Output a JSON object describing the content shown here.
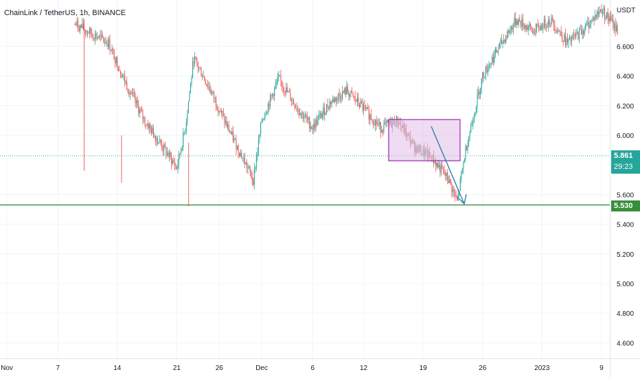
{
  "header": {
    "symbol": "ChainLink / TetherUS",
    "interval": "1h",
    "exchange": "BINANCE",
    "separator": ", "
  },
  "price_axis": {
    "unit": "USDT",
    "ticks": [
      "6.600",
      "6.400",
      "6.200",
      "6.000",
      "5.600",
      "5.400",
      "5.200",
      "5.000",
      "4.800",
      "4.600"
    ]
  },
  "time_axis": {
    "ticks": [
      "Nov",
      "7",
      "14",
      "21",
      "26",
      "Dec",
      "6",
      "12",
      "19",
      "26",
      "2023",
      "9"
    ]
  },
  "last_price": {
    "value": "5.861",
    "countdown": "29:23",
    "color": "#26a69a"
  },
  "support": {
    "value": "5.530",
    "color": "#388e3c"
  },
  "colors": {
    "up": "#26a69a",
    "down": "#ef5350",
    "grid": "#f0f3fa",
    "box_fill": "#e1bee7",
    "box_stroke": "#9c27b0",
    "arrow": "#2e7fa0"
  },
  "chart_data": {
    "type": "candlestick",
    "title": "ChainLink / TetherUS, 1h, BINANCE",
    "ylabel": "USDT",
    "ylim": [
      4.5,
      6.82
    ],
    "x_ticks": [
      "Nov",
      "7",
      "14",
      "21",
      "26",
      "Dec",
      "6",
      "12",
      "19",
      "26",
      "2023",
      "9"
    ],
    "y_ticks": [
      6.6,
      6.4,
      6.2,
      6.0,
      5.6,
      5.4,
      5.2,
      5.0,
      4.8,
      4.6
    ],
    "price_path": [
      [
        8,
        6.75
      ],
      [
        12,
        6.62
      ],
      [
        14,
        6.35
      ],
      [
        16,
        6.12
      ],
      [
        18,
        5.95
      ],
      [
        20,
        5.78
      ],
      [
        21,
        6.05
      ],
      [
        22,
        6.52
      ],
      [
        24,
        6.3
      ],
      [
        26,
        6.05
      ],
      [
        28,
        5.82
      ],
      [
        29,
        5.7
      ],
      [
        30,
        6.1
      ],
      [
        32,
        6.38
      ],
      [
        34,
        6.2
      ],
      [
        36,
        6.05
      ],
      [
        38,
        6.22
      ],
      [
        40,
        6.3
      ],
      [
        42,
        6.18
      ],
      [
        44,
        6.05
      ],
      [
        46,
        6.1
      ],
      [
        48,
        5.92
      ],
      [
        50,
        5.85
      ],
      [
        52,
        5.7
      ],
      [
        53,
        5.55
      ],
      [
        54,
        5.9
      ],
      [
        56,
        6.4
      ],
      [
        58,
        6.6
      ],
      [
        60,
        6.78
      ],
      [
        62,
        6.7
      ],
      [
        64,
        6.78
      ],
      [
        66,
        6.62
      ],
      [
        68,
        6.72
      ],
      [
        70,
        6.85
      ],
      [
        72,
        6.7
      ],
      [
        100,
        6.8
      ],
      [
        103,
        6.74
      ],
      [
        105,
        6.7
      ],
      [
        107,
        6.55
      ],
      [
        109,
        6.7
      ],
      [
        111,
        6.68
      ],
      [
        113,
        6.8
      ],
      [
        115,
        6.74
      ],
      [
        116,
        6.6
      ],
      [
        118,
        6.48
      ],
      [
        119,
        6.25
      ],
      [
        120,
        6.15
      ],
      [
        121,
        5.98
      ],
      [
        122,
        5.8
      ],
      [
        123,
        5.98
      ],
      [
        125,
        6.02
      ],
      [
        127,
        5.96
      ],
      [
        129,
        6.03
      ],
      [
        131,
        5.92
      ],
      [
        133,
        6.04
      ],
      [
        134,
        5.88
      ]
    ],
    "last_price": 5.861,
    "support_level": 5.53,
    "annotations": [
      {
        "type": "rectangle",
        "x": [
          120,
          134
        ],
        "y": [
          5.77,
          6.05
        ]
      },
      {
        "type": "arrow",
        "from": [
          134,
          6.05
        ],
        "to": [
          142,
          5.53
        ]
      }
    ]
  }
}
